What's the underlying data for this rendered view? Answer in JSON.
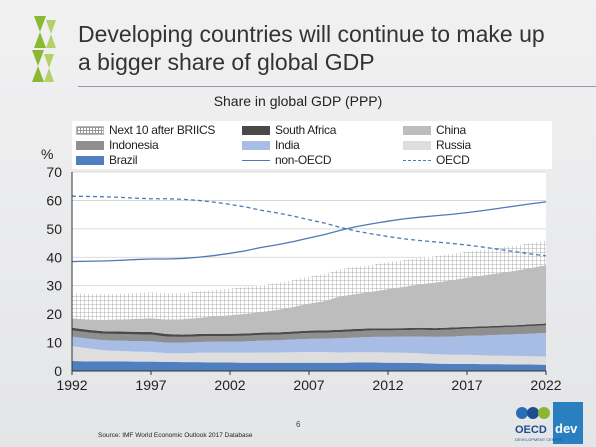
{
  "slide": {
    "title_line1": "Developing countries will continue to make up",
    "title_line2": "a bigger share of global GDP",
    "page_number": "6",
    "source": "Source: IMF World Economic Outlook 2017 Database",
    "logo_text": "OECD",
    "logo_text2": "dev",
    "logo_tagline": "DEVELOPMENT CENTRE"
  },
  "colors": {
    "brazil": "#4f7ec1",
    "russia": "#dedede",
    "india": "#a8bde5",
    "indonesia": "#8f8f8f",
    "south_africa": "#4a4a4a",
    "china": "#bdbdbd",
    "non_oecd": "#4f79b6",
    "oecd": "#4f79b6",
    "logo_green": "#8ab833"
  },
  "chart_data": {
    "type": "area",
    "title": "Share in global GDP (PPP)",
    "ylabel": "%",
    "xlabel": "",
    "ylim": [
      0,
      70
    ],
    "yticks": [
      0,
      10,
      20,
      30,
      40,
      50,
      60,
      70
    ],
    "xlim": [
      1992,
      2022
    ],
    "xticks": [
      1992,
      1997,
      2002,
      2007,
      2012,
      2017,
      2022
    ],
    "grid": true,
    "stacked": true,
    "x": [
      1992,
      1993,
      1994,
      1995,
      1996,
      1997,
      1998,
      1999,
      2000,
      2001,
      2002,
      2003,
      2004,
      2005,
      2006,
      2007,
      2008,
      2009,
      2010,
      2011,
      2012,
      2013,
      2014,
      2015,
      2016,
      2017,
      2018,
      2019,
      2020,
      2021,
      2022
    ],
    "series": [
      {
        "name": "Brazil",
        "kind": "area",
        "values": [
          3.5,
          3.4,
          3.4,
          3.4,
          3.3,
          3.3,
          3.2,
          3.1,
          3.1,
          3.0,
          3.0,
          2.9,
          2.9,
          2.9,
          2.9,
          2.9,
          2.9,
          2.9,
          3.0,
          3.0,
          2.9,
          2.9,
          2.8,
          2.6,
          2.5,
          2.5,
          2.4,
          2.4,
          2.3,
          2.3,
          2.2
        ]
      },
      {
        "name": "Russia",
        "kind": "area",
        "values": [
          5.2,
          4.6,
          3.9,
          3.7,
          3.5,
          3.4,
          3.1,
          3.1,
          3.3,
          3.4,
          3.4,
          3.5,
          3.6,
          3.6,
          3.7,
          3.8,
          3.8,
          3.6,
          3.6,
          3.6,
          3.6,
          3.5,
          3.4,
          3.3,
          3.2,
          3.2,
          3.1,
          3.0,
          3.0,
          2.9,
          2.9
        ]
      },
      {
        "name": "India",
        "kind": "area",
        "values": [
          3.4,
          3.4,
          3.5,
          3.6,
          3.7,
          3.7,
          3.7,
          3.8,
          3.8,
          3.9,
          3.9,
          4.0,
          4.2,
          4.3,
          4.5,
          4.6,
          4.7,
          5.0,
          5.2,
          5.4,
          5.5,
          5.7,
          5.9,
          6.1,
          6.4,
          6.7,
          7.0,
          7.3,
          7.6,
          7.9,
          8.3
        ]
      },
      {
        "name": "Indonesia",
        "kind": "area",
        "values": [
          2.2,
          2.2,
          2.3,
          2.3,
          2.4,
          2.4,
          2.1,
          2.0,
          2.0,
          2.0,
          2.0,
          2.0,
          2.0,
          2.0,
          2.0,
          2.1,
          2.1,
          2.2,
          2.2,
          2.3,
          2.3,
          2.3,
          2.4,
          2.4,
          2.5,
          2.5,
          2.6,
          2.6,
          2.6,
          2.7,
          2.7
        ]
      },
      {
        "name": "South Africa",
        "kind": "area",
        "values": [
          0.9,
          0.9,
          0.9,
          0.9,
          0.9,
          0.9,
          0.9,
          0.8,
          0.8,
          0.8,
          0.8,
          0.8,
          0.8,
          0.8,
          0.8,
          0.8,
          0.8,
          0.8,
          0.8,
          0.7,
          0.7,
          0.7,
          0.7,
          0.7,
          0.7,
          0.6,
          0.6,
          0.6,
          0.6,
          0.6,
          0.6
        ]
      },
      {
        "name": "China",
        "kind": "area",
        "values": [
          3.3,
          3.6,
          4.0,
          4.2,
          4.5,
          4.8,
          5.1,
          5.4,
          5.7,
          6.1,
          6.5,
          6.9,
          7.3,
          7.9,
          8.6,
          9.5,
          10.3,
          11.8,
          12.3,
          12.9,
          13.8,
          14.5,
          15.3,
          16.0,
          16.6,
          17.3,
          17.9,
          18.5,
          19.1,
          19.8,
          20.5
        ]
      },
      {
        "name": "Next 10 after BRIICS",
        "kind": "area",
        "values": [
          9.1,
          9.0,
          9.0,
          9.1,
          9.1,
          9.2,
          9.2,
          9.2,
          9.3,
          9.3,
          9.4,
          9.4,
          9.4,
          9.5,
          9.5,
          9.5,
          9.6,
          9.6,
          9.6,
          9.5,
          9.5,
          9.4,
          9.4,
          9.3,
          9.3,
          9.2,
          9.1,
          9.0,
          8.9,
          8.8,
          8.7
        ]
      },
      {
        "name": "non-OECD",
        "kind": "line",
        "style": "solid",
        "values": [
          38.5,
          38.6,
          38.7,
          38.9,
          39.2,
          39.4,
          39.4,
          39.6,
          40.0,
          40.6,
          41.4,
          42.3,
          43.5,
          44.4,
          45.5,
          46.8,
          48.0,
          49.5,
          50.8,
          51.8,
          52.7,
          53.5,
          54.1,
          54.6,
          55.1,
          55.7,
          56.4,
          57.2,
          58.0,
          58.8,
          59.5
        ]
      },
      {
        "name": "OECD",
        "kind": "line",
        "style": "dashed",
        "values": [
          61.5,
          61.4,
          61.3,
          61.1,
          60.8,
          60.6,
          60.6,
          60.4,
          60.0,
          59.4,
          58.6,
          57.7,
          56.5,
          55.6,
          54.5,
          53.2,
          52.0,
          50.5,
          49.2,
          48.2,
          47.3,
          46.5,
          45.9,
          45.4,
          44.9,
          44.3,
          43.6,
          42.8,
          42.0,
          41.2,
          40.5
        ]
      }
    ],
    "legend": {
      "position": "top",
      "entries": [
        {
          "name": "Next 10 after BRIICS",
          "swatch": "hatch"
        },
        {
          "name": "South Africa",
          "swatch": "south_africa"
        },
        {
          "name": "China",
          "swatch": "china"
        },
        {
          "name": "Indonesia",
          "swatch": "indonesia"
        },
        {
          "name": "India",
          "swatch": "india"
        },
        {
          "name": "Russia",
          "swatch": "russia"
        },
        {
          "name": "Brazil",
          "swatch": "brazil"
        },
        {
          "name": "non-OECD",
          "swatch": "line-solid"
        },
        {
          "name": "OECD",
          "swatch": "line-dashed"
        }
      ]
    }
  }
}
